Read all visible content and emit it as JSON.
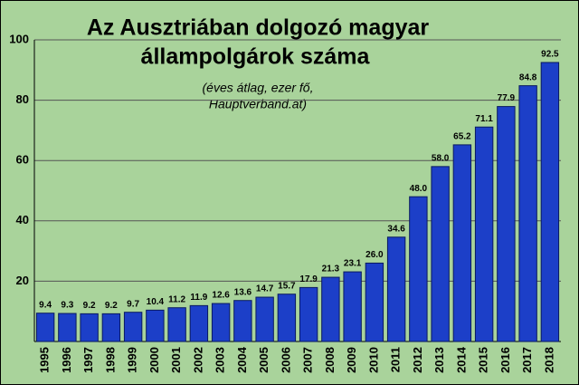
{
  "chart_data": {
    "type": "bar",
    "title": [
      "Az Ausztriában dolgozó magyar",
      "állampolgárok száma"
    ],
    "subtitle": [
      "(éves átlag, ezer fő,",
      "Hauptverband.at)"
    ],
    "categories": [
      "1995",
      "1996",
      "1997",
      "1998",
      "1999",
      "2000",
      "2001",
      "2002",
      "2003",
      "2004",
      "2005",
      "2006",
      "2007",
      "2008",
      "2009",
      "2010",
      "2011",
      "2012",
      "2013",
      "2014",
      "2015",
      "2016",
      "2017",
      "2018"
    ],
    "values": [
      9.4,
      9.3,
      9.2,
      9.2,
      9.7,
      10.4,
      11.2,
      11.9,
      12.6,
      13.6,
      14.7,
      15.7,
      17.9,
      21.3,
      23.1,
      26.0,
      34.6,
      48.0,
      58.0,
      65.2,
      71.1,
      77.9,
      84.8,
      92.5
    ],
    "value_labels": [
      "9.4",
      "9.3",
      "9.2",
      "9.2",
      "9.7",
      "10.4",
      "11.2",
      "11.9",
      "12.6",
      "13.6",
      "14.7",
      "15.7",
      "17.9",
      "21.3",
      "23.1",
      "26.0",
      "34.6",
      "48.0",
      "58.0",
      "65.2",
      "71.1",
      "77.9",
      "84.8",
      "92.5"
    ],
    "color": "#1c3fc8",
    "ylim": [
      0,
      100
    ],
    "yticks": [
      20,
      40,
      60,
      80,
      100
    ],
    "grid": true
  }
}
